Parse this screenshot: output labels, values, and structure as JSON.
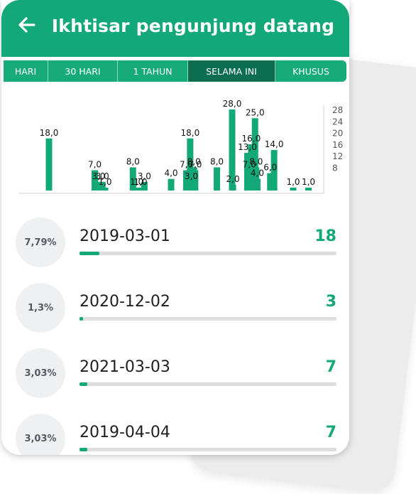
{
  "colors": {
    "primary": "#13a878",
    "tab_bg": "#17ab79",
    "tab_selected": "#0d6e4f",
    "bar": "#13a878",
    "track": "#dedede"
  },
  "header": {
    "back_icon": "arrow-left-icon",
    "title": "Ikhtisar pengunjung datang"
  },
  "tabs": [
    {
      "label": "HARI",
      "selected": false
    },
    {
      "label": "30 HARI",
      "selected": false
    },
    {
      "label": "1 TAHUN",
      "selected": false
    },
    {
      "label": "SELAMA INI",
      "selected": true
    },
    {
      "label": "KHUSUS",
      "selected": false
    }
  ],
  "chart_data": {
    "type": "bar",
    "y_ticks": [
      "28",
      "24",
      "20",
      "16",
      "12",
      "8"
    ],
    "ylim": [
      0,
      29
    ],
    "grid": false,
    "bars": [
      {
        "x": 8,
        "value": 18,
        "label": "18,0"
      },
      {
        "x": 20,
        "value": 7,
        "label": "7,0"
      },
      {
        "x": 21,
        "value": 3,
        "label": "3,0"
      },
      {
        "x": 22,
        "value": 3,
        "label": "3,0"
      },
      {
        "x": 22.7,
        "value": 1,
        "label": "1,0"
      },
      {
        "x": 30,
        "value": 8,
        "label": "8,0"
      },
      {
        "x": 31,
        "value": 1,
        "label": "1,0"
      },
      {
        "x": 32,
        "value": 1,
        "label": "1,0"
      },
      {
        "x": 33,
        "value": 3,
        "label": "3,0"
      },
      {
        "x": 40,
        "value": 4,
        "label": "4,0"
      },
      {
        "x": 44,
        "value": 7,
        "label": "7,0"
      },
      {
        "x": 45,
        "value": 18,
        "label": "18,0"
      },
      {
        "x": 45.3,
        "value": 3,
        "label": "3,0"
      },
      {
        "x": 46,
        "value": 8,
        "label": "8,0"
      },
      {
        "x": 46.3,
        "value": 7,
        "label": "7,0"
      },
      {
        "x": 52,
        "value": 8,
        "label": "8,0"
      },
      {
        "x": 56,
        "value": 28,
        "label": "28,0"
      },
      {
        "x": 56.2,
        "value": 2,
        "label": "2,0"
      },
      {
        "x": 60,
        "value": 13,
        "label": "13,0"
      },
      {
        "x": 60.5,
        "value": 7,
        "label": "7,0"
      },
      {
        "x": 61,
        "value": 16,
        "label": "16,0"
      },
      {
        "x": 62,
        "value": 25,
        "label": "25,0"
      },
      {
        "x": 62.3,
        "value": 8,
        "label": "8,0"
      },
      {
        "x": 62.6,
        "value": 4,
        "label": "4,0"
      },
      {
        "x": 66,
        "value": 6,
        "label": "6,0"
      },
      {
        "x": 67,
        "value": 14,
        "label": "14,0"
      },
      {
        "x": 72,
        "value": 1,
        "label": "1,0"
      },
      {
        "x": 76,
        "value": 1,
        "label": "1,0"
      }
    ]
  },
  "entries": [
    {
      "percent": "7,79%",
      "date": "2019-03-01",
      "count": "18",
      "fraction": 0.0779
    },
    {
      "percent": "1,3%",
      "date": "2020-12-02",
      "count": "3",
      "fraction": 0.013
    },
    {
      "percent": "3,03%",
      "date": "2021-03-03",
      "count": "7",
      "fraction": 0.0303
    },
    {
      "percent": "3,03%",
      "date": "2019-04-04",
      "count": "7",
      "fraction": 0.0303
    }
  ]
}
